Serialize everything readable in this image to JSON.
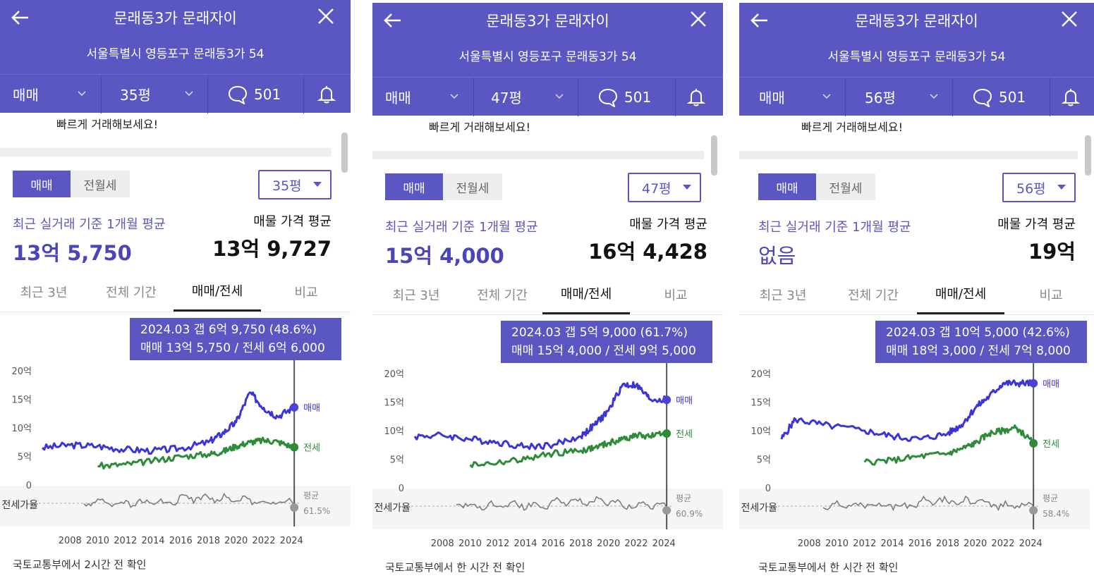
{
  "colors": {
    "header": "#5a57c2",
    "sale_line": "#3b34d6",
    "jeonse_line": "#2e8b3a",
    "ratio_line": "#777777",
    "tooltip": "#5a57c2"
  },
  "icons": {
    "back": "arrow-left-icon",
    "close": "close-icon",
    "chat": "chat-bubble-icon",
    "bell": "bell-icon",
    "dropdown": "chevron-down-icon"
  },
  "common": {
    "title": "문래동3가 문래자이",
    "address": "서울특별시 영등포구 문래동3가 54",
    "deal_type": "매매",
    "comment_count": "501",
    "promo": "빠르게 거래해보세요!",
    "toggle_sale": "매매",
    "toggle_rent": "전월세",
    "recent_label": "최근 실거래 기준 1개월 평균",
    "ask_label": "매물 가격 평균",
    "tabs": [
      "최근 3년",
      "전체 기간",
      "매매/전세",
      "비교"
    ],
    "y_labels": [
      "20억",
      "15억",
      "10억",
      "5억",
      "0"
    ],
    "x_labels": [
      "2008",
      "2010",
      "2012",
      "2014",
      "2016",
      "2018",
      "2020",
      "2022",
      "2024"
    ],
    "sale_label": "매매",
    "jeonse_label": "전세",
    "ratio_row_label": "전세가율",
    "avg_label": "평균"
  },
  "panels": [
    {
      "size": "35평",
      "recent_value": "13억 5,750",
      "ask_value": "13억 9,727",
      "tip_line1": "2024.03  갭 6억 9,750 (48.6%)",
      "tip_line2": "매매 13억 5,750 / 전세 6억 6,000",
      "ratio_avg": "61.5%",
      "source": "국토교통부에서 2시간 전 확인"
    },
    {
      "size": "47평",
      "recent_value": "15억 4,000",
      "ask_value": "16억 4,428",
      "tip_line1": "2024.03  갭 5억 9,000 (61.7%)",
      "tip_line2": "매매 15억 4,000 / 전세 9억 5,000",
      "ratio_avg": "60.9%",
      "source": "국토교통부에서 한 시간 전 확인"
    },
    {
      "size": "56평",
      "recent_value": "없음",
      "ask_value": "19억",
      "tip_line1": "2024.03  갭 10억 5,000 (42.6%)",
      "tip_line2": "매매 18억 3,000 / 전세 7억 8,000",
      "ratio_avg": "58.4%",
      "source": "국토교통부에서 한 시간 전 확인"
    }
  ],
  "chart_data": [
    {
      "type": "line",
      "ylabel": "",
      "ylim": [
        0,
        20
      ],
      "x": [
        2006,
        2008,
        2010,
        2012,
        2014,
        2016,
        2018,
        2019,
        2020,
        2021,
        2022,
        2023,
        2024.2
      ],
      "series": [
        {
          "name": "매매",
          "values": [
            6.5,
            7.0,
            6.8,
            6.2,
            6.0,
            6.4,
            7.5,
            9.0,
            11.0,
            16.2,
            13.5,
            12.0,
            13.6
          ]
        },
        {
          "name": "전세",
          "values": [
            null,
            null,
            3.3,
            3.6,
            4.2,
            5.0,
            5.4,
            5.8,
            6.8,
            7.5,
            7.8,
            7.6,
            6.6
          ]
        }
      ]
    },
    {
      "type": "line",
      "ylabel": "",
      "ylim": [
        0,
        20
      ],
      "x": [
        2006,
        2008,
        2010,
        2012,
        2014,
        2016,
        2018,
        2019,
        2020,
        2021,
        2022,
        2023,
        2024.2
      ],
      "series": [
        {
          "name": "매매",
          "values": [
            9.0,
            9.2,
            8.5,
            8.0,
            7.2,
            7.5,
            9.0,
            11.0,
            13.5,
            18.0,
            18.0,
            15.5,
            15.4
          ]
        },
        {
          "name": "전세",
          "values": [
            null,
            null,
            4.0,
            4.4,
            5.0,
            6.0,
            6.5,
            7.0,
            7.8,
            8.5,
            9.2,
            9.0,
            9.5
          ]
        }
      ]
    },
    {
      "type": "line",
      "ylabel": "",
      "ylim": [
        0,
        20
      ],
      "x": [
        2006,
        2007,
        2009,
        2012,
        2014,
        2016,
        2018,
        2019,
        2020,
        2021,
        2022,
        2023,
        2024.2
      ],
      "series": [
        {
          "name": "매매",
          "values": [
            8.5,
            12.0,
            11.0,
            10.0,
            9.0,
            8.5,
            9.5,
            11.0,
            14.0,
            16.0,
            18.3,
            18.3,
            18.3
          ]
        },
        {
          "name": "전세",
          "values": [
            null,
            null,
            null,
            4.5,
            4.8,
            5.5,
            6.0,
            6.8,
            7.8,
            9.5,
            10.0,
            10.5,
            7.8
          ]
        }
      ]
    }
  ]
}
